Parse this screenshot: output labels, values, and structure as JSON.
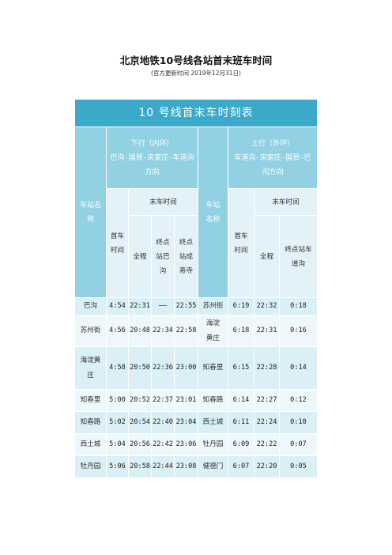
{
  "doc": {
    "title": "北京地铁10号线各站首末班车时间",
    "subtitle": "(官方更新时间 2019年12月31日)"
  },
  "table": {
    "caption": "10 号线首末车时刻表",
    "down": {
      "line1": "下行（内环）",
      "line2": "巴沟-国贸-宋家庄-车道沟方向"
    },
    "up": {
      "line1": "上行（外环）",
      "line2": "车道沟-宋家庄-国贸-巴沟方向"
    },
    "station_header": "车站名称",
    "last_header": "末车时间",
    "first_header": "首车时间",
    "full_header": "全程",
    "term_bagou": "终点站巴沟",
    "term_chengshousi": "终点站成寿寺",
    "term_chedaogou": "终点站车道沟",
    "rows": [
      {
        "s1": "巴沟",
        "f1": "4:54",
        "a1": "22:31",
        "b1": "——",
        "c1": "22:55",
        "s2": "苏州街",
        "f2": "6:19",
        "a2": "22:32",
        "c2": "0:18"
      },
      {
        "s1": "苏州街",
        "f1": "4:56",
        "a1": "20:48",
        "b1": "22:34",
        "c1": "22:58",
        "s2": "海淀黄庄",
        "f2": "6:18",
        "a2": "22:31",
        "c2": "0:16"
      },
      {
        "s1": "海淀黄庄",
        "f1": "4:58",
        "a1": "20:50",
        "b1": "22:36",
        "c1": "23:00",
        "s2": "知春里",
        "f2": "6:15",
        "a2": "22:28",
        "c2": "0:14"
      },
      {
        "s1": "知春里",
        "f1": "5:00",
        "a1": "20:52",
        "b1": "22:37",
        "c1": "23:01",
        "s2": "知春路",
        "f2": "6:14",
        "a2": "22:27",
        "c2": "0:12"
      },
      {
        "s1": "知春路",
        "f1": "5:02",
        "a1": "20:54",
        "b1": "22:40",
        "c1": "23:04",
        "s2": "西土城",
        "f2": "6:11",
        "a2": "22:24",
        "c2": "0:10"
      },
      {
        "s1": "西土城",
        "f1": "5:04",
        "a1": "20:56",
        "b1": "22:42",
        "c1": "23:06",
        "s2": "牡丹园",
        "f2": "6:09",
        "a2": "22:22",
        "c2": "0:07"
      },
      {
        "s1": "牡丹园",
        "f1": "5:06",
        "a1": "20:58",
        "b1": "22:44",
        "c1": "23:08",
        "s2": "健德门",
        "f2": "6:07",
        "a2": "22:20",
        "c2": "0:05"
      }
    ]
  }
}
